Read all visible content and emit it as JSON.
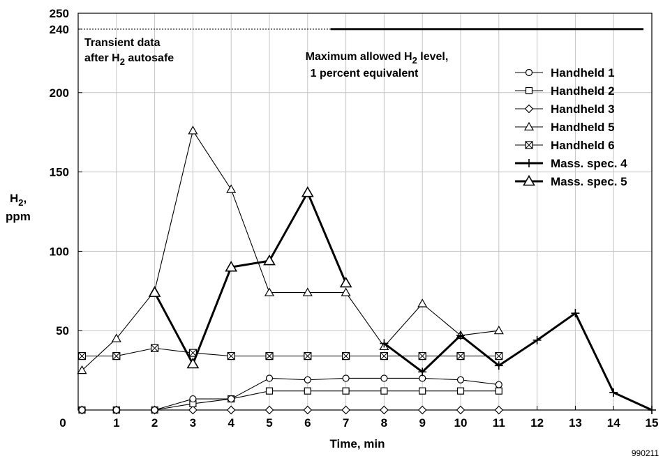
{
  "chart_data": {
    "type": "line",
    "xlabel": "Time, min",
    "ylabel_line1": "H",
    "ylabel_sub": "2",
    "ylabel_line2": ",",
    "ylabel_line3": "ppm",
    "xlim": [
      0,
      15
    ],
    "ylim": [
      0,
      250
    ],
    "x_ticks": [
      "0",
      "1",
      "2",
      "3",
      "4",
      "5",
      "6",
      "7",
      "8",
      "9",
      "10",
      "11",
      "12",
      "13",
      "14",
      "15"
    ],
    "y_ticks": [
      "50",
      "100",
      "150",
      "200",
      "240",
      "250"
    ],
    "y_tick_values": [
      50,
      100,
      150,
      200,
      240,
      250
    ],
    "grid": true,
    "legend_position": "top-right",
    "limit_line": {
      "y": 240
    },
    "annotations": {
      "transient_line1": "Transient data",
      "transient_line2_pre": "after H",
      "transient_line2_sub": "2",
      "transient_line2_post": " autosafe",
      "max_line1_pre": "Maximum allowed H",
      "max_line1_sub": "2",
      "max_line1_post": " level,",
      "max_line2": "1 percent equivalent"
    },
    "figure_id": "990211",
    "series": [
      {
        "name": "Handheld 1",
        "marker": "circle",
        "bold": false,
        "x": [
          0.1,
          1,
          2,
          3,
          4,
          5,
          6,
          7,
          8,
          9,
          10,
          11
        ],
        "y": [
          0,
          0,
          0,
          7,
          7,
          20,
          19,
          20,
          20,
          20,
          19,
          16
        ]
      },
      {
        "name": "Handheld 2",
        "marker": "square",
        "bold": false,
        "x": [
          0.1,
          1,
          2,
          3,
          4,
          5,
          6,
          7,
          8,
          9,
          10,
          11
        ],
        "y": [
          0,
          0,
          0,
          4,
          7,
          12,
          12,
          12,
          12,
          12,
          12,
          12
        ]
      },
      {
        "name": "Handheld 3",
        "marker": "diamond",
        "bold": false,
        "x": [
          0.1,
          1,
          2,
          3,
          4,
          5,
          6,
          7,
          8,
          9,
          10,
          11
        ],
        "y": [
          0,
          0,
          0,
          0,
          0,
          0,
          0,
          0,
          0,
          0,
          0,
          0
        ]
      },
      {
        "name": "Handheld 5",
        "marker": "triangle",
        "bold": false,
        "x": [
          0.1,
          1,
          2,
          3,
          4,
          5,
          6,
          7,
          8,
          9,
          10,
          11
        ],
        "y": [
          25,
          45,
          75,
          176,
          139,
          74,
          74,
          74,
          40,
          67,
          47,
          50
        ]
      },
      {
        "name": "Handheld 6",
        "marker": "boxx",
        "bold": false,
        "x": [
          0.1,
          1,
          2,
          3,
          4,
          5,
          6,
          7,
          8,
          9,
          10,
          11
        ],
        "y": [
          34,
          34,
          39,
          36,
          34,
          34,
          34,
          34,
          34,
          34,
          34,
          34
        ]
      },
      {
        "name": "Mass. spec. 4",
        "marker": "plus",
        "bold": true,
        "x": [
          8,
          9,
          10,
          11,
          12,
          13,
          14,
          15
        ],
        "y": [
          42,
          24,
          47,
          28,
          44,
          61,
          11,
          0
        ]
      },
      {
        "name": "Mass. spec. 5",
        "marker": "triangle-lg",
        "bold": true,
        "x": [
          2,
          3,
          4,
          5,
          6,
          7
        ],
        "y": [
          74,
          29,
          90,
          94,
          137,
          80
        ]
      }
    ]
  }
}
